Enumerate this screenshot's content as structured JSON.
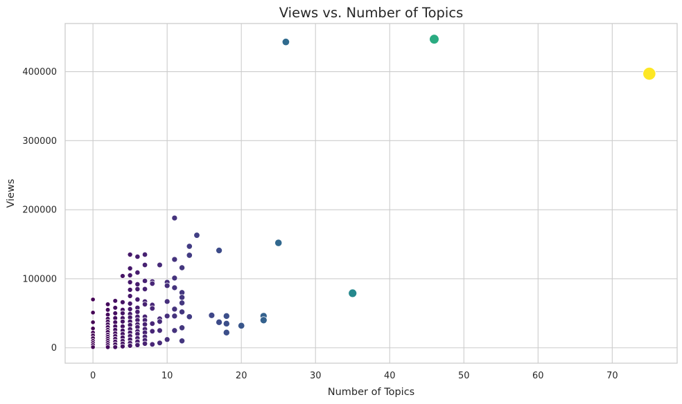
{
  "chart_data": {
    "type": "scatter",
    "title": "Views vs. Number of Topics",
    "xlabel": "Number of Topics",
    "ylabel": "Views",
    "xlim": [
      -3.75,
      78.75
    ],
    "ylim": [
      -22300,
      469700
    ],
    "xticks": [
      0,
      10,
      20,
      30,
      40,
      50,
      60,
      70
    ],
    "yticks": [
      0,
      100000,
      200000,
      300000,
      400000
    ],
    "grid": true,
    "legend": "none",
    "colormap": "viridis",
    "colors": {
      "background": "#ffffff",
      "grid": "#cccccc",
      "spine": "#cccccc",
      "text": "#262626",
      "marker_edge": "#ffffff"
    },
    "points": [
      {
        "x": 75,
        "y": 397000
      },
      {
        "x": 46,
        "y": 447000
      },
      {
        "x": 26,
        "y": 443000
      },
      {
        "x": 25,
        "y": 152000
      },
      {
        "x": 35,
        "y": 79000
      },
      {
        "x": 23,
        "y": 46000
      },
      {
        "x": 23,
        "y": 40000
      },
      {
        "x": 20,
        "y": 32000
      },
      {
        "x": 18,
        "y": 46000
      },
      {
        "x": 18,
        "y": 35000
      },
      {
        "x": 18,
        "y": 22000
      },
      {
        "x": 17,
        "y": 141000
      },
      {
        "x": 17,
        "y": 37000
      },
      {
        "x": 16,
        "y": 47000
      },
      {
        "x": 14,
        "y": 163000
      },
      {
        "x": 13,
        "y": 147000
      },
      {
        "x": 13,
        "y": 134000
      },
      {
        "x": 13,
        "y": 45000
      },
      {
        "x": 11,
        "y": 188000
      },
      {
        "x": 11,
        "y": 128000
      },
      {
        "x": 11,
        "y": 101000
      },
      {
        "x": 11,
        "y": 87000
      },
      {
        "x": 11,
        "y": 56000
      },
      {
        "x": 11,
        "y": 46000
      },
      {
        "x": 11,
        "y": 25000
      },
      {
        "x": 12,
        "y": 116000
      },
      {
        "x": 12,
        "y": 80000
      },
      {
        "x": 12,
        "y": 73000
      },
      {
        "x": 12,
        "y": 65000
      },
      {
        "x": 12,
        "y": 52000
      },
      {
        "x": 12,
        "y": 29000
      },
      {
        "x": 12,
        "y": 10000
      },
      {
        "x": 10,
        "y": 95000
      },
      {
        "x": 10,
        "y": 90000
      },
      {
        "x": 10,
        "y": 67000
      },
      {
        "x": 10,
        "y": 46000
      },
      {
        "x": 10,
        "y": 12000
      },
      {
        "x": 9,
        "y": 120000
      },
      {
        "x": 9,
        "y": 42000
      },
      {
        "x": 9,
        "y": 38000
      },
      {
        "x": 9,
        "y": 25000
      },
      {
        "x": 9,
        "y": 7000
      },
      {
        "x": 8,
        "y": 96000
      },
      {
        "x": 8,
        "y": 93000
      },
      {
        "x": 8,
        "y": 62000
      },
      {
        "x": 8,
        "y": 57000
      },
      {
        "x": 8,
        "y": 35000
      },
      {
        "x": 8,
        "y": 24000
      },
      {
        "x": 8,
        "y": 5000
      },
      {
        "x": 7,
        "y": 135000
      },
      {
        "x": 7,
        "y": 120000
      },
      {
        "x": 7,
        "y": 97000
      },
      {
        "x": 7,
        "y": 85000
      },
      {
        "x": 7,
        "y": 67000
      },
      {
        "x": 7,
        "y": 63000
      },
      {
        "x": 7,
        "y": 45000
      },
      {
        "x": 7,
        "y": 40000
      },
      {
        "x": 7,
        "y": 34000
      },
      {
        "x": 7,
        "y": 27000
      },
      {
        "x": 7,
        "y": 22000
      },
      {
        "x": 7,
        "y": 16000
      },
      {
        "x": 7,
        "y": 11000
      },
      {
        "x": 7,
        "y": 6000
      },
      {
        "x": 6,
        "y": 132000
      },
      {
        "x": 6,
        "y": 109000
      },
      {
        "x": 6,
        "y": 92000
      },
      {
        "x": 6,
        "y": 85000
      },
      {
        "x": 6,
        "y": 70000
      },
      {
        "x": 6,
        "y": 58000
      },
      {
        "x": 6,
        "y": 52000
      },
      {
        "x": 6,
        "y": 45000
      },
      {
        "x": 6,
        "y": 40000
      },
      {
        "x": 6,
        "y": 34000
      },
      {
        "x": 6,
        "y": 30000
      },
      {
        "x": 6,
        "y": 24000
      },
      {
        "x": 6,
        "y": 20000
      },
      {
        "x": 6,
        "y": 14000
      },
      {
        "x": 6,
        "y": 9000
      },
      {
        "x": 6,
        "y": 4000
      },
      {
        "x": 5,
        "y": 135000
      },
      {
        "x": 5,
        "y": 115000
      },
      {
        "x": 5,
        "y": 105000
      },
      {
        "x": 5,
        "y": 95000
      },
      {
        "x": 5,
        "y": 84000
      },
      {
        "x": 5,
        "y": 75000
      },
      {
        "x": 5,
        "y": 64000
      },
      {
        "x": 5,
        "y": 56000
      },
      {
        "x": 5,
        "y": 49000
      },
      {
        "x": 5,
        "y": 44000
      },
      {
        "x": 5,
        "y": 38000
      },
      {
        "x": 5,
        "y": 33000
      },
      {
        "x": 5,
        "y": 27000
      },
      {
        "x": 5,
        "y": 22000
      },
      {
        "x": 5,
        "y": 17000
      },
      {
        "x": 5,
        "y": 12000
      },
      {
        "x": 5,
        "y": 7000
      },
      {
        "x": 5,
        "y": 3000
      },
      {
        "x": 4,
        "y": 104000
      },
      {
        "x": 4,
        "y": 66000
      },
      {
        "x": 4,
        "y": 55000
      },
      {
        "x": 4,
        "y": 50000
      },
      {
        "x": 4,
        "y": 43000
      },
      {
        "x": 4,
        "y": 38000
      },
      {
        "x": 4,
        "y": 31000
      },
      {
        "x": 4,
        "y": 25000
      },
      {
        "x": 4,
        "y": 20000
      },
      {
        "x": 4,
        "y": 15000
      },
      {
        "x": 4,
        "y": 10000
      },
      {
        "x": 4,
        "y": 6000
      },
      {
        "x": 4,
        "y": 2000
      },
      {
        "x": 3,
        "y": 68000
      },
      {
        "x": 3,
        "y": 58000
      },
      {
        "x": 3,
        "y": 50000
      },
      {
        "x": 3,
        "y": 43000
      },
      {
        "x": 3,
        "y": 37000
      },
      {
        "x": 3,
        "y": 31000
      },
      {
        "x": 3,
        "y": 26000
      },
      {
        "x": 3,
        "y": 21000
      },
      {
        "x": 3,
        "y": 17000
      },
      {
        "x": 3,
        "y": 13000
      },
      {
        "x": 3,
        "y": 9000
      },
      {
        "x": 3,
        "y": 5000
      },
      {
        "x": 3,
        "y": 1000
      },
      {
        "x": 2,
        "y": 63000
      },
      {
        "x": 2,
        "y": 55000
      },
      {
        "x": 2,
        "y": 48000
      },
      {
        "x": 2,
        "y": 42000
      },
      {
        "x": 2,
        "y": 38000
      },
      {
        "x": 2,
        "y": 34000
      },
      {
        "x": 2,
        "y": 30000
      },
      {
        "x": 2,
        "y": 26000
      },
      {
        "x": 2,
        "y": 23000
      },
      {
        "x": 2,
        "y": 19000
      },
      {
        "x": 2,
        "y": 16000
      },
      {
        "x": 2,
        "y": 13000
      },
      {
        "x": 2,
        "y": 10000
      },
      {
        "x": 2,
        "y": 7000
      },
      {
        "x": 2,
        "y": 4000
      },
      {
        "x": 2,
        "y": 1000
      },
      {
        "x": 0,
        "y": 70000
      },
      {
        "x": 0,
        "y": 51000
      },
      {
        "x": 0,
        "y": 37000
      },
      {
        "x": 0,
        "y": 28000
      },
      {
        "x": 0,
        "y": 22000
      },
      {
        "x": 0,
        "y": 18000
      },
      {
        "x": 0,
        "y": 14000
      },
      {
        "x": 0,
        "y": 10000
      },
      {
        "x": 0,
        "y": 7000
      },
      {
        "x": 0,
        "y": 4000
      },
      {
        "x": 0,
        "y": 1000
      }
    ]
  }
}
